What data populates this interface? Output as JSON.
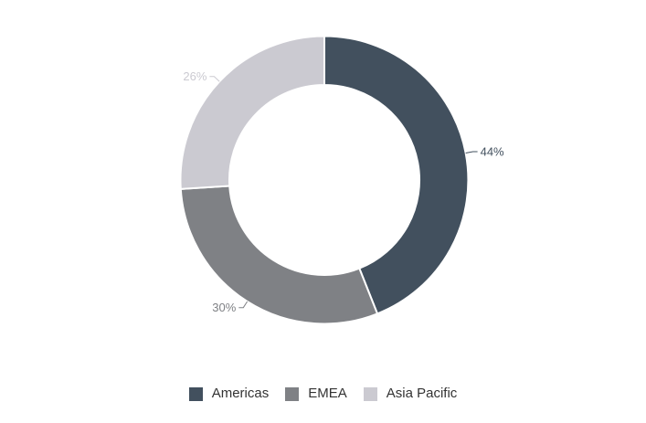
{
  "chart_data": {
    "type": "pie",
    "subtype": "donut",
    "title": "",
    "categories": [
      "Americas",
      "EMEA",
      "Asia Pacific"
    ],
    "values": [
      44,
      30,
      26
    ],
    "data_labels": [
      "44%",
      "30%",
      "26%"
    ],
    "unit": "%",
    "colors": [
      "#42505e",
      "#7f8185",
      "#cbcad1"
    ],
    "legend_position": "bottom",
    "legend_text_color": "#333333",
    "start_angle_deg": 0,
    "direction": "clockwise",
    "inner_radius_ratio": 0.66,
    "background_color": "#ffffff"
  }
}
